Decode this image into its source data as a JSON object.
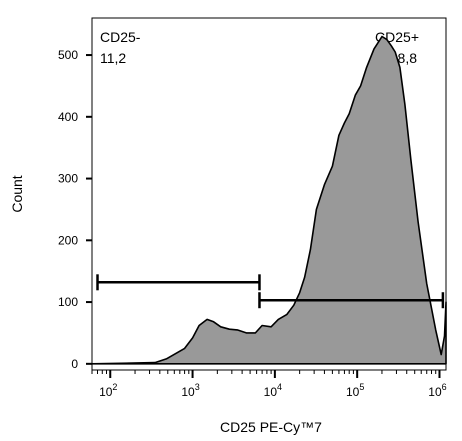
{
  "chart_data": {
    "type": "area",
    "xlabel": "CD25 PE-Cy™7",
    "ylabel": "Count",
    "x_scale": "log",
    "xlim": [
      60,
      1200000
    ],
    "ylim": [
      -10,
      560
    ],
    "y_ticks": [
      {
        "value": 0,
        "label": "0"
      },
      {
        "value": 100,
        "label": "100"
      },
      {
        "value": 200,
        "label": "200"
      },
      {
        "value": 300,
        "label": "300"
      },
      {
        "value": 400,
        "label": "400"
      },
      {
        "value": 500,
        "label": "500"
      }
    ],
    "x_ticks": [
      {
        "value": 100,
        "base": "10",
        "exp": "2"
      },
      {
        "value": 1000,
        "base": "10",
        "exp": "3"
      },
      {
        "value": 10000,
        "base": "10",
        "exp": "4"
      },
      {
        "value": 100000,
        "base": "10",
        "exp": "5"
      },
      {
        "value": 1000000,
        "base": "10",
        "exp": "6"
      }
    ],
    "series": [
      {
        "fill": "#999999",
        "x": [
          60,
          350,
          480,
          650,
          800,
          1000,
          1200,
          1500,
          1800,
          2200,
          2800,
          3500,
          4500,
          5800,
          7000,
          9000,
          11000,
          14000,
          17000,
          20000,
          23000,
          27000,
          32000,
          40000,
          50000,
          60000,
          70000,
          80000,
          95000,
          110000,
          130000,
          160000,
          200000,
          230000,
          260000,
          290000,
          330000,
          380000,
          450000,
          550000,
          700000,
          900000,
          1050000,
          1150000,
          1200000
        ],
        "y": [
          0,
          2,
          8,
          18,
          25,
          42,
          62,
          72,
          68,
          60,
          56,
          55,
          50,
          50,
          62,
          60,
          72,
          80,
          95,
          115,
          140,
          185,
          250,
          290,
          320,
          370,
          390,
          405,
          435,
          450,
          480,
          510,
          530,
          525,
          515,
          505,
          480,
          420,
          330,
          230,
          130,
          55,
          15,
          45,
          100
        ]
      }
    ],
    "gates": [
      {
        "name": "CD25-",
        "percent": "11,2",
        "x_start": 70,
        "x_end": 6500,
        "y_level": 132
      },
      {
        "name": "CD25+",
        "percent": "88,8",
        "x_start": 6500,
        "x_end": 1100000,
        "y_level": 103
      }
    ]
  }
}
